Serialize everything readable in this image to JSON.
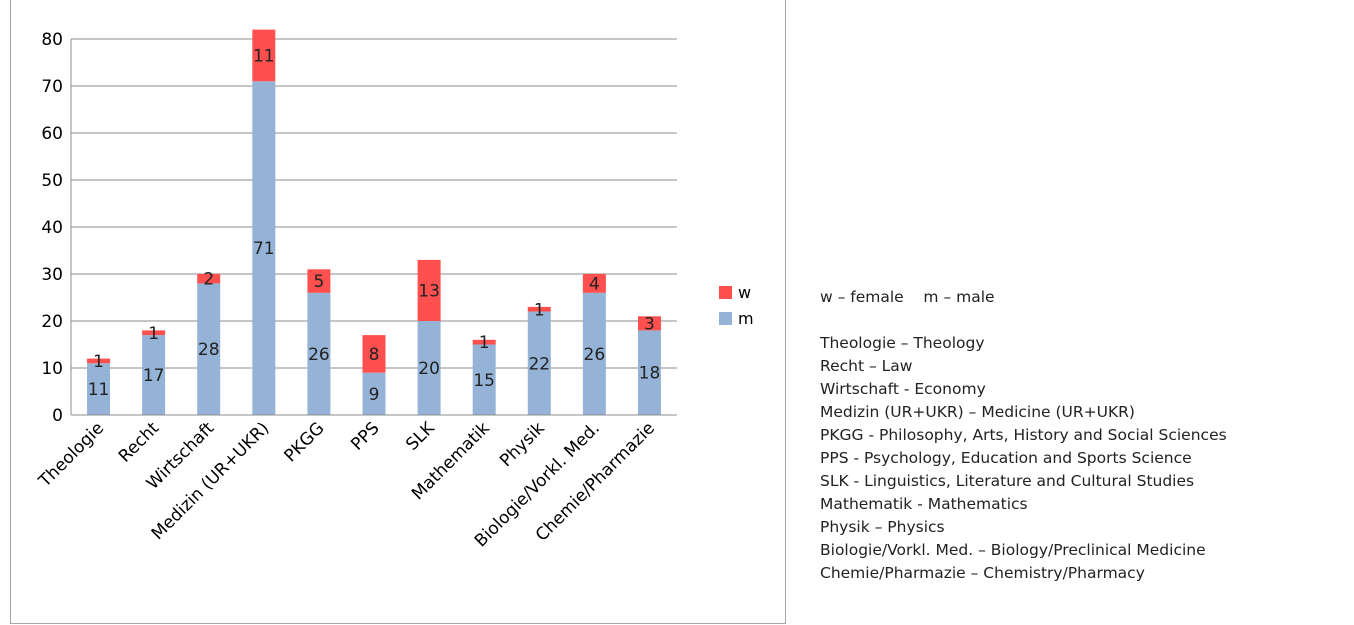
{
  "chart_data": {
    "type": "bar",
    "stacked": true,
    "categories": [
      "Theologie",
      "Recht",
      "Wirtschaft",
      "Medizin (UR+UKR)",
      "PKGG",
      "PPS",
      "SLK",
      "Mathematik",
      "Physik",
      "Biologie/Vorkl. Med.",
      "Chemie/Pharmazie"
    ],
    "series": [
      {
        "name": "m",
        "color": "#95b3d7",
        "values": [
          11,
          17,
          28,
          71,
          26,
          9,
          20,
          15,
          22,
          26,
          18
        ]
      },
      {
        "name": "w",
        "color": "#ff4f4f",
        "values": [
          1,
          1,
          2,
          11,
          5,
          8,
          13,
          1,
          1,
          4,
          3
        ]
      }
    ],
    "ylim": [
      0,
      80
    ],
    "yticks": [
      "0",
      "10",
      "20",
      "30",
      "40",
      "50",
      "60",
      "70",
      "80"
    ],
    "grid": true,
    "legend_position": "right",
    "legend_order": [
      "w",
      "m"
    ]
  },
  "notes": {
    "gender_line": "w – female    m – male",
    "lines": [
      "Theologie – Theology",
      "Recht – Law",
      "Wirtschaft - Economy",
      "Medizin (UR+UKR) – Medicine (UR+UKR)",
      "PKGG - Philosophy, Arts, History and Social Sciences",
      "PPS - Psychology, Education and Sports Science",
      "SLK - Linguistics, Literature and Cultural Studies",
      "Mathematik - Mathematics",
      "Physik – Physics",
      "Biologie/Vorkl. Med. – Biology/Preclinical Medicine",
      "Chemie/Pharmazie – Chemistry/Pharmacy"
    ]
  }
}
